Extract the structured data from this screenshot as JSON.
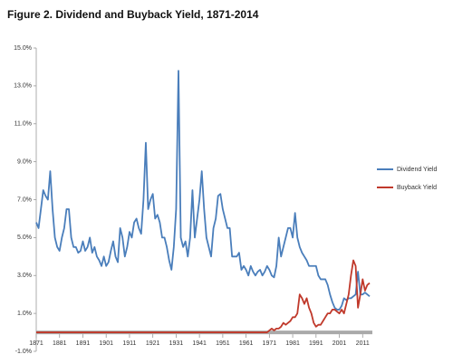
{
  "chart_data": {
    "type": "line",
    "title": "Figure 2. Dividend and Buyback Yield, 1871-2014",
    "x": [
      1871,
      1872,
      1873,
      1874,
      1875,
      1876,
      1877,
      1878,
      1879,
      1880,
      1881,
      1882,
      1883,
      1884,
      1885,
      1886,
      1887,
      1888,
      1889,
      1890,
      1891,
      1892,
      1893,
      1894,
      1895,
      1896,
      1897,
      1898,
      1899,
      1900,
      1901,
      1902,
      1903,
      1904,
      1905,
      1906,
      1907,
      1908,
      1909,
      1910,
      1911,
      1912,
      1913,
      1914,
      1915,
      1916,
      1917,
      1918,
      1919,
      1920,
      1921,
      1922,
      1923,
      1924,
      1925,
      1926,
      1927,
      1928,
      1929,
      1930,
      1931,
      1932,
      1933,
      1934,
      1935,
      1936,
      1937,
      1938,
      1939,
      1940,
      1941,
      1942,
      1943,
      1944,
      1945,
      1946,
      1947,
      1948,
      1949,
      1950,
      1951,
      1952,
      1953,
      1954,
      1955,
      1956,
      1957,
      1958,
      1959,
      1960,
      1961,
      1962,
      1963,
      1964,
      1965,
      1966,
      1967,
      1968,
      1969,
      1970,
      1971,
      1972,
      1973,
      1974,
      1975,
      1976,
      1977,
      1978,
      1979,
      1980,
      1981,
      1982,
      1983,
      1984,
      1985,
      1986,
      1987,
      1988,
      1989,
      1990,
      1991,
      1992,
      1993,
      1994,
      1995,
      1996,
      1997,
      1998,
      1999,
      2000,
      2001,
      2002,
      2003,
      2004,
      2005,
      2006,
      2007,
      2008,
      2009,
      2010,
      2011,
      2012,
      2013,
      2014
    ],
    "series": [
      {
        "name": "Dividend Yield",
        "color": "#4a7ebb",
        "values": [
          5.8,
          5.5,
          6.5,
          7.5,
          7.2,
          7.0,
          8.5,
          6.5,
          5.0,
          4.5,
          4.3,
          5.0,
          5.5,
          6.5,
          6.5,
          5.0,
          4.5,
          4.5,
          4.2,
          4.3,
          4.8,
          4.3,
          4.5,
          5.0,
          4.2,
          4.5,
          4.0,
          3.8,
          3.5,
          4.0,
          3.5,
          3.7,
          4.3,
          4.8,
          4.0,
          3.7,
          5.5,
          5.0,
          4.0,
          4.5,
          5.3,
          5.0,
          5.8,
          6.0,
          5.5,
          5.2,
          7.0,
          10.0,
          6.5,
          7.0,
          7.3,
          6.0,
          6.2,
          5.8,
          5.0,
          5.0,
          4.5,
          3.8,
          3.3,
          4.5,
          6.5,
          13.8,
          5.0,
          4.5,
          4.8,
          4.0,
          5.0,
          7.5,
          5.0,
          6.0,
          7.0,
          8.5,
          6.5,
          5.0,
          4.5,
          4.0,
          5.5,
          6.0,
          7.2,
          7.3,
          6.5,
          6.0,
          5.5,
          5.5,
          4.0,
          4.0,
          4.0,
          4.2,
          3.3,
          3.5,
          3.3,
          3.0,
          3.5,
          3.2,
          3.0,
          3.2,
          3.3,
          3.0,
          3.2,
          3.5,
          3.3,
          3.0,
          2.9,
          3.5,
          5.0,
          4.0,
          4.5,
          5.0,
          5.5,
          5.5,
          5.0,
          6.3,
          5.0,
          4.5,
          4.2,
          4.0,
          3.8,
          3.5,
          3.5,
          3.5,
          3.5,
          3.0,
          2.8,
          2.8,
          2.8,
          2.5,
          2.0,
          1.6,
          1.3,
          1.2,
          1.2,
          1.4,
          1.8,
          1.7,
          1.8,
          1.8,
          1.9,
          2.0,
          3.2,
          2.0,
          2.0,
          2.1,
          2.0,
          1.9
        ]
      },
      {
        "name": "Buyback Yield",
        "color": "#c0392b",
        "values": [
          0,
          0,
          0,
          0,
          0,
          0,
          0,
          0,
          0,
          0,
          0,
          0,
          0,
          0,
          0,
          0,
          0,
          0,
          0,
          0,
          0,
          0,
          0,
          0,
          0,
          0,
          0,
          0,
          0,
          0,
          0,
          0,
          0,
          0,
          0,
          0,
          0,
          0,
          0,
          0,
          0,
          0,
          0,
          0,
          0,
          0,
          0,
          0,
          0,
          0,
          0,
          0,
          0,
          0,
          0,
          0,
          0,
          0,
          0,
          0,
          0,
          0,
          0,
          0,
          0,
          0,
          0,
          0,
          0,
          0,
          0,
          0,
          0,
          0,
          0,
          0,
          0,
          0,
          0,
          0,
          0,
          0,
          0,
          0,
          0,
          0,
          0,
          0,
          0,
          0,
          0,
          0,
          0,
          0,
          0,
          0,
          0,
          0,
          0,
          0,
          0.1,
          0.2,
          0.1,
          0.2,
          0.2,
          0.3,
          0.5,
          0.4,
          0.5,
          0.6,
          0.8,
          0.8,
          1.0,
          2.0,
          1.8,
          1.5,
          1.8,
          1.3,
          1.0,
          0.5,
          0.3,
          0.4,
          0.4,
          0.6,
          0.8,
          1.0,
          1.0,
          1.2,
          1.2,
          1.1,
          1.0,
          1.2,
          1.0,
          1.5,
          2.0,
          3.0,
          3.8,
          3.5,
          1.3,
          2.0,
          2.8,
          2.2,
          2.5,
          2.6
        ]
      }
    ],
    "xlim": [
      1871,
      2014
    ],
    "xticks": [
      1871,
      1881,
      1891,
      1901,
      1911,
      1921,
      1931,
      1941,
      1951,
      1961,
      1971,
      1981,
      1991,
      2001,
      2011
    ],
    "ylim": [
      -1,
      15
    ],
    "yticks": [
      {
        "value": -1,
        "label": "-1.0%"
      },
      {
        "value": 1,
        "label": "1.0%"
      },
      {
        "value": 3,
        "label": "3.0%"
      },
      {
        "value": 5,
        "label": "5.0%"
      },
      {
        "value": 7,
        "label": "7.0%"
      },
      {
        "value": 9,
        "label": "9.0%"
      },
      {
        "value": 11,
        "label": "11.0%"
      },
      {
        "value": 13,
        "label": "13.0%"
      },
      {
        "value": 15,
        "label": "15.0%"
      }
    ],
    "legend": "right"
  }
}
